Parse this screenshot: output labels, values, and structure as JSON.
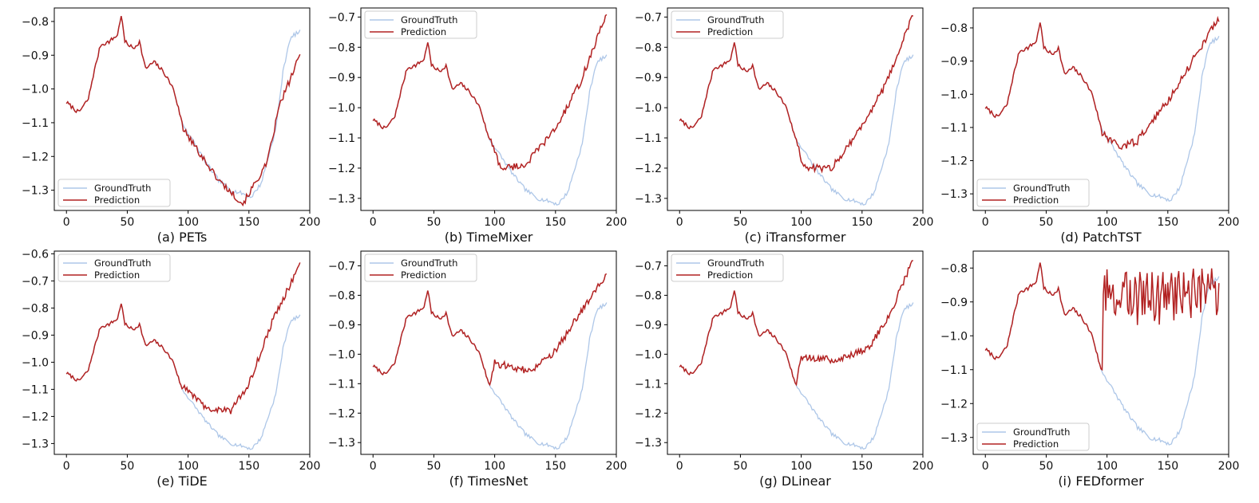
{
  "chart_data": [
    {
      "type": "line",
      "caption": "(a) PETs",
      "xlim": [
        -10,
        200
      ],
      "ylim": [
        -1.36,
        -0.76
      ],
      "xticks": [
        0,
        50,
        100,
        150,
        200
      ],
      "yticks": [
        -0.8,
        -0.9,
        -1.0,
        -1.1,
        -1.2,
        -1.3
      ],
      "tick_labels": {
        "x": [
          "0",
          "50",
          "100",
          "150",
          "200"
        ],
        "y": [
          "−0.8",
          "−0.9",
          "−1.0",
          "−1.1",
          "−1.2",
          "−1.3"
        ]
      },
      "prediction_start": 96,
      "prediction_mode": "track",
      "pred_points": [
        [
          96,
          -1.12
        ],
        [
          125,
          -1.27
        ],
        [
          145,
          -1.34
        ],
        [
          165,
          -1.22
        ],
        [
          175,
          -1.05
        ],
        [
          192,
          -0.9
        ]
      ],
      "legend": {
        "position": "lower-left",
        "entries": [
          "GroundTruth",
          "Prediction"
        ]
      },
      "series": [
        {
          "name": "GroundTruth",
          "color": "#aec7e8"
        },
        {
          "name": "Prediction",
          "color": "#b22222"
        }
      ]
    },
    {
      "type": "line",
      "caption": "(b) TimeMixer",
      "xlim": [
        -10,
        200
      ],
      "ylim": [
        -1.34,
        -0.67
      ],
      "xticks": [
        0,
        50,
        100,
        150,
        200
      ],
      "yticks": [
        -0.7,
        -0.8,
        -0.9,
        -1.0,
        -1.1,
        -1.2,
        -1.3
      ],
      "tick_labels": {
        "x": [
          "0",
          "50",
          "100",
          "150",
          "200"
        ],
        "y": [
          "−0.7",
          "−0.8",
          "−0.9",
          "−1.0",
          "−1.1",
          "−1.2",
          "−1.3"
        ]
      },
      "prediction_start": 96,
      "prediction_mode": "anchors",
      "pred_points": [
        [
          96,
          -1.1
        ],
        [
          105,
          -1.2
        ],
        [
          125,
          -1.19
        ],
        [
          150,
          -1.07
        ],
        [
          170,
          -0.92
        ],
        [
          192,
          -0.69
        ]
      ],
      "legend": {
        "position": "top-left",
        "entries": [
          "GroundTruth",
          "Prediction"
        ]
      },
      "series": [
        {
          "name": "GroundTruth",
          "color": "#aec7e8"
        },
        {
          "name": "Prediction",
          "color": "#b22222"
        }
      ]
    },
    {
      "type": "line",
      "caption": "(c) iTransformer",
      "xlim": [
        -10,
        200
      ],
      "ylim": [
        -1.34,
        -0.67
      ],
      "xticks": [
        0,
        50,
        100,
        150,
        200
      ],
      "yticks": [
        -0.7,
        -0.8,
        -0.9,
        -1.0,
        -1.1,
        -1.2,
        -1.3
      ],
      "tick_labels": {
        "x": [
          "0",
          "50",
          "100",
          "150",
          "200"
        ],
        "y": [
          "−0.7",
          "−0.8",
          "−0.9",
          "−1.0",
          "−1.1",
          "−1.2",
          "−1.3"
        ]
      },
      "prediction_start": 96,
      "prediction_mode": "anchors",
      "pred_points": [
        [
          96,
          -1.1
        ],
        [
          102,
          -1.2
        ],
        [
          125,
          -1.2
        ],
        [
          150,
          -1.06
        ],
        [
          170,
          -0.92
        ],
        [
          192,
          -0.69
        ]
      ],
      "legend": {
        "position": "top-left",
        "entries": [
          "GroundTruth",
          "Prediction"
        ]
      },
      "series": [
        {
          "name": "GroundTruth",
          "color": "#aec7e8"
        },
        {
          "name": "Prediction",
          "color": "#b22222"
        }
      ]
    },
    {
      "type": "line",
      "caption": "(d) PatchTST",
      "xlim": [
        -10,
        200
      ],
      "ylim": [
        -1.35,
        -0.74
      ],
      "xticks": [
        0,
        50,
        100,
        150,
        200
      ],
      "yticks": [
        -0.8,
        -0.9,
        -1.0,
        -1.1,
        -1.2,
        -1.3
      ],
      "tick_labels": {
        "x": [
          "0",
          "50",
          "100",
          "150",
          "200"
        ],
        "y": [
          "−0.8",
          "−0.9",
          "−1.0",
          "−1.1",
          "−1.2",
          "−1.3"
        ]
      },
      "prediction_start": 96,
      "prediction_mode": "anchors",
      "pred_points": [
        [
          96,
          -1.12
        ],
        [
          110,
          -1.16
        ],
        [
          125,
          -1.14
        ],
        [
          150,
          -1.02
        ],
        [
          170,
          -0.9
        ],
        [
          192,
          -0.77
        ]
      ],
      "legend": {
        "position": "lower-left",
        "entries": [
          "GroundTruth",
          "Prediction"
        ]
      },
      "series": [
        {
          "name": "GroundTruth",
          "color": "#aec7e8"
        },
        {
          "name": "Prediction",
          "color": "#b22222"
        }
      ]
    },
    {
      "type": "line",
      "caption": "(e) TiDE",
      "xlim": [
        -10,
        200
      ],
      "ylim": [
        -1.34,
        -0.59
      ],
      "xticks": [
        0,
        50,
        100,
        150,
        200
      ],
      "yticks": [
        -0.6,
        -0.7,
        -0.8,
        -0.9,
        -1.0,
        -1.1,
        -1.2,
        -1.3
      ],
      "tick_labels": {
        "x": [
          "0",
          "50",
          "100",
          "150",
          "200"
        ],
        "y": [
          "−0.6",
          "−0.7",
          "−0.8",
          "−0.9",
          "−1.0",
          "−1.1",
          "−1.2",
          "−1.3"
        ]
      },
      "prediction_start": 96,
      "prediction_mode": "anchors",
      "pred_points": [
        [
          96,
          -1.09
        ],
        [
          115,
          -1.17
        ],
        [
          135,
          -1.18
        ],
        [
          150,
          -1.08
        ],
        [
          170,
          -0.84
        ],
        [
          192,
          -0.64
        ]
      ],
      "legend": {
        "position": "top-left",
        "entries": [
          "GroundTruth",
          "Prediction"
        ]
      },
      "series": [
        {
          "name": "GroundTruth",
          "color": "#aec7e8"
        },
        {
          "name": "Prediction",
          "color": "#b22222"
        }
      ]
    },
    {
      "type": "line",
      "caption": "(f) TimesNet",
      "xlim": [
        -10,
        200
      ],
      "ylim": [
        -1.34,
        -0.65
      ],
      "xticks": [
        0,
        50,
        100,
        150,
        200
      ],
      "yticks": [
        -0.7,
        -0.8,
        -0.9,
        -1.0,
        -1.1,
        -1.2,
        -1.3
      ],
      "tick_labels": {
        "x": [
          "0",
          "50",
          "100",
          "150",
          "200"
        ],
        "y": [
          "−0.7",
          "−0.8",
          "−0.9",
          "−1.0",
          "−1.1",
          "−1.2",
          "−1.3"
        ]
      },
      "prediction_start": 96,
      "prediction_mode": "anchors",
      "pred_points": [
        [
          96,
          -1.1
        ],
        [
          100,
          -1.03
        ],
        [
          130,
          -1.06
        ],
        [
          150,
          -0.99
        ],
        [
          170,
          -0.86
        ],
        [
          192,
          -0.73
        ]
      ],
      "legend": {
        "position": "top-left",
        "entries": [
          "GroundTruth",
          "Prediction"
        ]
      },
      "series": [
        {
          "name": "GroundTruth",
          "color": "#aec7e8"
        },
        {
          "name": "Prediction",
          "color": "#b22222"
        }
      ]
    },
    {
      "type": "line",
      "caption": "(g) DLinear",
      "xlim": [
        -10,
        200
      ],
      "ylim": [
        -1.34,
        -0.65
      ],
      "xticks": [
        0,
        50,
        100,
        150,
        200
      ],
      "yticks": [
        -0.7,
        -0.8,
        -0.9,
        -1.0,
        -1.1,
        -1.2,
        -1.3
      ],
      "tick_labels": {
        "x": [
          "0",
          "50",
          "100",
          "150",
          "200"
        ],
        "y": [
          "−0.7",
          "−0.8",
          "−0.9",
          "−1.0",
          "−1.1",
          "−1.2",
          "−1.3"
        ]
      },
      "prediction_start": 96,
      "prediction_mode": "anchors",
      "pred_points": [
        [
          96,
          -1.1
        ],
        [
          100,
          -1.01
        ],
        [
          130,
          -1.02
        ],
        [
          155,
          -0.98
        ],
        [
          172,
          -0.87
        ],
        [
          192,
          -0.68
        ]
      ],
      "legend": {
        "position": "top-left",
        "entries": [
          "GroundTruth",
          "Prediction"
        ]
      },
      "series": [
        {
          "name": "GroundTruth",
          "color": "#aec7e8"
        },
        {
          "name": "Prediction",
          "color": "#b22222"
        }
      ]
    },
    {
      "type": "line",
      "caption": "(i) FEDformer",
      "xlim": [
        -10,
        200
      ],
      "ylim": [
        -1.35,
        -0.75
      ],
      "xticks": [
        0,
        50,
        100,
        150,
        200
      ],
      "yticks": [
        -0.8,
        -0.9,
        -1.0,
        -1.1,
        -1.2,
        -1.3
      ],
      "tick_labels": {
        "x": [
          "0",
          "50",
          "100",
          "150",
          "200"
        ],
        "y": [
          "−0.8",
          "−0.9",
          "−1.0",
          "−1.1",
          "−1.2",
          "−1.3"
        ]
      },
      "prediction_start": 96,
      "prediction_mode": "noisy",
      "pred_points": [
        [
          96,
          -1.1
        ],
        [
          97,
          -0.88
        ],
        [
          192,
          -0.88
        ]
      ],
      "legend": {
        "position": "lower-left",
        "entries": [
          "GroundTruth",
          "Prediction"
        ]
      },
      "series": [
        {
          "name": "GroundTruth",
          "color": "#aec7e8"
        },
        {
          "name": "Prediction",
          "color": "#b22222"
        }
      ]
    }
  ],
  "ground_truth_anchors": [
    [
      0,
      -1.04
    ],
    [
      10,
      -1.07
    ],
    [
      18,
      -1.03
    ],
    [
      22,
      -0.96
    ],
    [
      28,
      -0.87
    ],
    [
      35,
      -0.86
    ],
    [
      42,
      -0.84
    ],
    [
      45,
      -0.78
    ],
    [
      48,
      -0.86
    ],
    [
      55,
      -0.88
    ],
    [
      60,
      -0.86
    ],
    [
      65,
      -0.94
    ],
    [
      72,
      -0.92
    ],
    [
      80,
      -0.95
    ],
    [
      88,
      -1.0
    ],
    [
      95,
      -1.1
    ],
    [
      105,
      -1.16
    ],
    [
      115,
      -1.22
    ],
    [
      125,
      -1.27
    ],
    [
      135,
      -1.3
    ],
    [
      145,
      -1.31
    ],
    [
      152,
      -1.32
    ],
    [
      160,
      -1.28
    ],
    [
      166,
      -1.2
    ],
    [
      172,
      -1.12
    ],
    [
      178,
      -0.95
    ],
    [
      183,
      -0.86
    ],
    [
      187,
      -0.84
    ],
    [
      192,
      -0.83
    ]
  ]
}
